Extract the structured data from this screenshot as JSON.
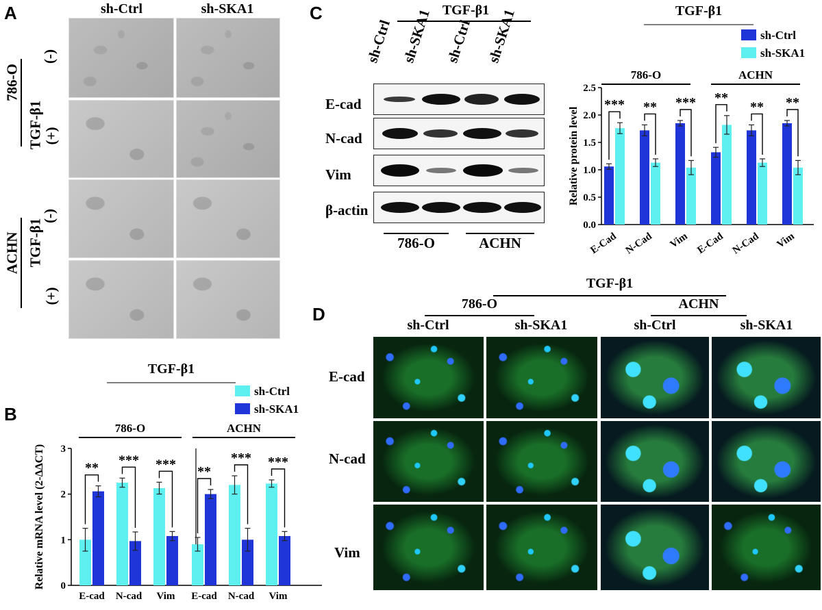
{
  "panelA": {
    "letter": "A",
    "col_labels": [
      "sh-Ctrl",
      "sh-SKA1"
    ],
    "cell_lines": [
      "786-O",
      "ACHN"
    ],
    "treatment": "TGF-β1",
    "conditions": [
      "(-)",
      "(+)"
    ]
  },
  "panelC": {
    "letter": "C",
    "blot": {
      "treatment": "TGF-β1",
      "lane_labels": [
        "sh-Ctrl",
        "sh-SKA1",
        "sh-Ctrl",
        "sh-SKA1"
      ],
      "row_labels": [
        "E-cad",
        "N-cad",
        "Vim",
        "β-actin"
      ],
      "cell_lines": [
        "786-O",
        "ACHN"
      ]
    }
  },
  "panelD": {
    "letter": "D",
    "treatment": "TGF-β1",
    "cell_lines": [
      "786-O",
      "ACHN"
    ],
    "col_labels": [
      "sh-Ctrl",
      "sh-SKA1",
      "sh-Ctrl",
      "sh-SKA1"
    ],
    "row_labels": [
      "E-cad",
      "N-cad",
      "Vim"
    ]
  },
  "panelB_label": "B",
  "chart_data": [
    {
      "panel": "C",
      "type": "bar",
      "title": "TGF-β1",
      "ylabel": "Relative protein level",
      "ylim": [
        0,
        2.5
      ],
      "yticks": [
        "0.0",
        "0.5",
        "1.0",
        "1.5",
        "2.0",
        "2.5"
      ],
      "groups": [
        "786-O",
        "ACHN"
      ],
      "categories": [
        "E-Cad",
        "N-Cad",
        "Vim",
        "E-Cad",
        "N-Cad",
        "Vim"
      ],
      "series": [
        {
          "name": "sh-Ctrl",
          "color": "#1f35d8",
          "values": [
            1.06,
            1.72,
            1.85,
            1.32,
            1.72,
            1.85
          ],
          "errors": [
            0.05,
            0.1,
            0.05,
            0.09,
            0.1,
            0.05
          ]
        },
        {
          "name": "sh-SKA1",
          "color": "#5ef0f0",
          "values": [
            1.76,
            1.13,
            1.04,
            1.82,
            1.13,
            1.04
          ],
          "errors": [
            0.1,
            0.07,
            0.13,
            0.17,
            0.07,
            0.13
          ]
        }
      ],
      "significance": [
        "***",
        "**",
        "***",
        "**",
        "**",
        "**"
      ],
      "legend": "top-right"
    },
    {
      "panel": "B",
      "type": "bar",
      "title": "TGF-β1",
      "ylabel": "Relative mRNA level (2-ΔΔCT)",
      "ylim": [
        0,
        3
      ],
      "yticks": [
        "0",
        "1",
        "2",
        "3"
      ],
      "groups": [
        "786-O",
        "ACHN"
      ],
      "categories": [
        "E-cad",
        "N-cad",
        "Vim",
        "E-cad",
        "N-cad",
        "Vim"
      ],
      "series": [
        {
          "name": "sh-Ctrl",
          "color": "#5ef0f0",
          "values": [
            1.0,
            2.25,
            2.13,
            0.9,
            2.2,
            2.23
          ],
          "errors": [
            0.25,
            0.1,
            0.13,
            0.15,
            0.2,
            0.08
          ]
        },
        {
          "name": "sh-SKA1",
          "color": "#1f35d8",
          "values": [
            2.06,
            0.97,
            1.08,
            2.0,
            1.0,
            1.08
          ],
          "errors": [
            0.12,
            0.2,
            0.1,
            0.1,
            0.25,
            0.1
          ]
        }
      ],
      "significance": [
        "**",
        "***",
        "***",
        "**",
        "***",
        "***"
      ],
      "legend": "top-right"
    }
  ]
}
